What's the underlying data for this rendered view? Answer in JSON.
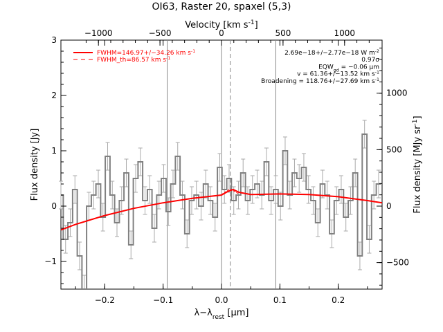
{
  "chart_data": {
    "type": "line",
    "title": "OI63, Raster 20, spaxel (5,3)",
    "xlabel": "λ−λ",
    "xlabel_sub": "rest",
    "xlabel_unit": " [μm]",
    "ylabel": "Flux density [Jy]",
    "y2label": "Flux density [MJy sr",
    "y2label_sup": "-1",
    "y2label_end": "]",
    "top_xlabel": "Velocity [km s",
    "top_xlabel_sup": "-1",
    "top_xlabel_end": "]",
    "xlim": [
      -0.275,
      0.275
    ],
    "ylim": [
      -1.5,
      3.0
    ],
    "y2lim": [
      -735,
      1470
    ],
    "x_ticks": [
      -0.2,
      -0.1,
      0.0,
      0.1,
      0.2
    ],
    "x_tick_labels": [
      "−0.2",
      "−0.1",
      "0.0",
      "0.1",
      "0.2"
    ],
    "y_ticks": [
      -1,
      0,
      1,
      2,
      3
    ],
    "y_tick_labels": [
      "−1",
      "0",
      "1",
      "2",
      "3"
    ],
    "y2_ticks": [
      -500,
      0,
      500,
      1000
    ],
    "y2_tick_labels": [
      "−500",
      "0",
      "500",
      "1000"
    ],
    "vel_ticks": [
      -1000,
      -500,
      0,
      500,
      1000
    ],
    "vel_tick_labels": [
      "−1000",
      "−500",
      "0",
      "500",
      "1000"
    ],
    "vertical_lines_solid": [
      -0.093,
      0.0,
      0.093
    ],
    "vertical_line_dashed": 0.015,
    "legend": {
      "placement": "top-left",
      "entries": [
        {
          "label": "FWHM=146.97+/−34.26 km s",
          "sup": "-1",
          "style": "solid",
          "color": "#ff0000"
        },
        {
          "label": "FWHM_th=86.57 km s",
          "sup": "-1",
          "style": "dashed",
          "color": "#ff0000"
        }
      ]
    },
    "annotations": [
      {
        "text": "2.69e−18+/−2.77e−18 W m",
        "sup": "-2",
        "tail": ""
      },
      {
        "text": "0.97σ",
        "sup": "",
        "tail": ""
      },
      {
        "text": "EQW",
        "sub": "gd",
        "tail": " = −0.06 μm"
      },
      {
        "text": "v = 61.36+/−13.52 km s",
        "sup": "-1",
        "tail": ""
      },
      {
        "text": "Broadening = 118.76+/−27.69 km s",
        "sup": "-1",
        "tail": ""
      }
    ],
    "series": [
      {
        "name": "spectrum",
        "style": "step",
        "color": "#808080",
        "error": 0.25,
        "x": [
          -0.275,
          -0.267,
          -0.259,
          -0.251,
          -0.243,
          -0.235,
          -0.227,
          -0.219,
          -0.211,
          -0.203,
          -0.195,
          -0.187,
          -0.179,
          -0.171,
          -0.163,
          -0.155,
          -0.147,
          -0.139,
          -0.131,
          -0.123,
          -0.115,
          -0.107,
          -0.099,
          -0.091,
          -0.083,
          -0.075,
          -0.067,
          -0.059,
          -0.051,
          -0.043,
          -0.035,
          -0.027,
          -0.019,
          -0.011,
          -0.003,
          0.005,
          0.013,
          0.021,
          0.029,
          0.037,
          0.045,
          0.053,
          0.061,
          0.069,
          0.077,
          0.085,
          0.093,
          0.101,
          0.109,
          0.117,
          0.125,
          0.133,
          0.141,
          0.149,
          0.157,
          0.165,
          0.173,
          0.181,
          0.189,
          0.197,
          0.205,
          0.213,
          0.221,
          0.229,
          0.237,
          0.245,
          0.253,
          0.261,
          0.269
        ],
        "y": [
          0.2,
          -0.6,
          -0.3,
          0.3,
          -0.9,
          -1.5,
          0.0,
          0.2,
          0.4,
          -0.2,
          0.9,
          0.2,
          -0.3,
          0.1,
          0.6,
          -0.7,
          0.5,
          0.8,
          0.1,
          0.3,
          -0.4,
          0.2,
          0.5,
          -0.1,
          0.4,
          0.9,
          0.2,
          -0.5,
          0.1,
          0.2,
          0.0,
          0.4,
          0.1,
          -0.2,
          0.7,
          0.3,
          0.5,
          0.1,
          0.2,
          0.6,
          0.1,
          0.3,
          0.4,
          0.2,
          0.8,
          0.1,
          0.3,
          0.0,
          1.0,
          0.2,
          0.6,
          0.5,
          0.7,
          0.3,
          0.1,
          -0.3,
          0.4,
          0.2,
          -0.5,
          0.1,
          0.3,
          -0.2,
          0.1,
          0.6,
          -0.9,
          1.3,
          -0.6,
          0.2,
          0.4
        ]
      },
      {
        "name": "fit",
        "style": "solid",
        "color": "#ff0000",
        "x": [
          -0.275,
          -0.25,
          -0.2,
          -0.15,
          -0.1,
          -0.05,
          0.0,
          0.01,
          0.02,
          0.03,
          0.05,
          0.1,
          0.15,
          0.2,
          0.25,
          0.275
        ],
        "y": [
          -0.43,
          -0.33,
          -0.17,
          -0.04,
          0.06,
          0.14,
          0.2,
          0.26,
          0.3,
          0.25,
          0.21,
          0.22,
          0.21,
          0.17,
          0.1,
          0.06
        ]
      },
      {
        "name": "fit_th",
        "style": "dashed",
        "color": "#ff0000",
        "x": [
          0.0,
          0.01,
          0.015,
          0.02,
          0.03
        ],
        "y": [
          0.21,
          0.28,
          0.31,
          0.28,
          0.22
        ]
      }
    ]
  }
}
